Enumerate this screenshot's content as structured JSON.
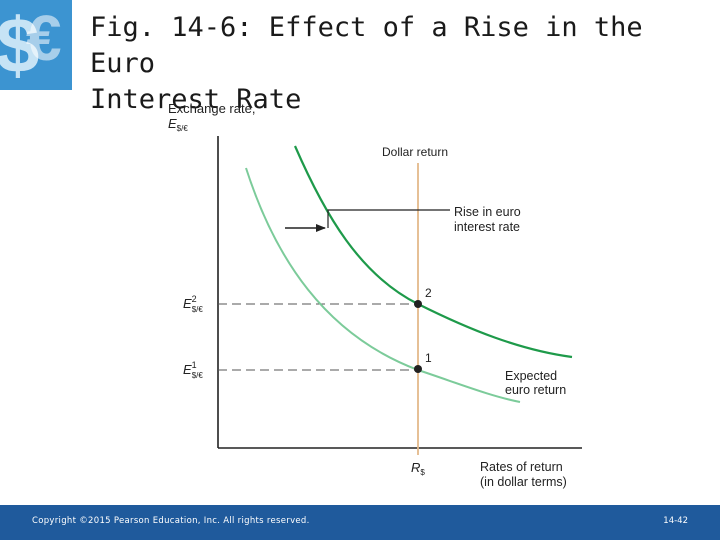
{
  "slide": {
    "title_line1": "Fig. 14-6: Effect of a Rise in the Euro",
    "title_line2": "Interest Rate"
  },
  "logo": {
    "icon": "dollar-euro-icon",
    "color": "#1f7fc2"
  },
  "diagram": {
    "y_axis_label": "Exchange rate,",
    "y_axis_symbol": "E",
    "y_axis_subscript": "$/€",
    "x_axis_label_line1": "Rates of return",
    "x_axis_label_line2": "(in dollar terms)",
    "x_tick_label": "R",
    "x_tick_subscript": "$",
    "dollar_return_label": "Dollar return",
    "shift_label_line1": "Rise in euro",
    "shift_label_line2": "interest rate",
    "curve_label_line1": "Expected",
    "curve_label_line2": "euro return",
    "eq2_label": "2",
    "eq1_label": "1",
    "e2_symbol": "E",
    "e2_superscript": "2",
    "e2_subscript": "$/€",
    "e1_symbol": "E",
    "e1_superscript": "1",
    "e1_subscript": "$/€",
    "colors": {
      "new_curve": "#1e9a4a",
      "old_curve": "#7ccb9a",
      "dollar_return_line": "#e3b98a",
      "axes": "#222222"
    }
  },
  "footer": {
    "copyright": "Copyright ©2015 Pearson Education, Inc. All rights reserved.",
    "page": "14-42",
    "color": "#1f5a9c"
  }
}
